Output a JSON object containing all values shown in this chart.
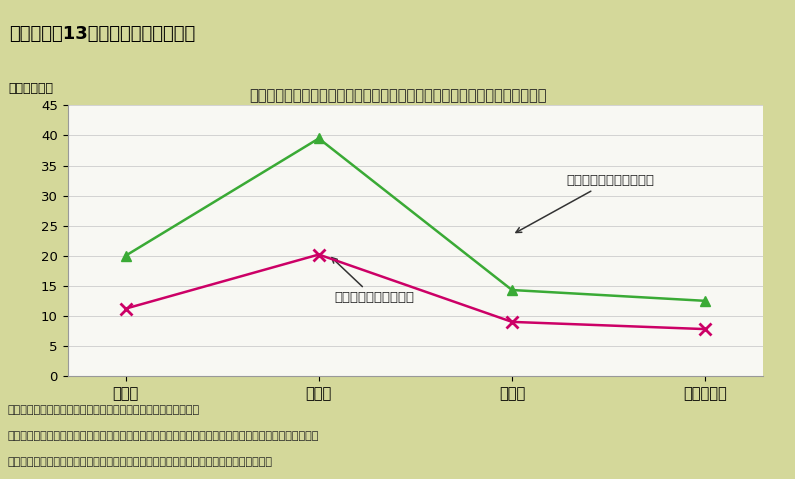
{
  "title": "第２－１－13図　復興需要への対応",
  "subtitle": "建設業を中心に復興需要の恩恵を受けているものの、設備投資には慎重姿勢",
  "ylabel": "（割合、％）",
  "categories": [
    "全産業",
    "建設業",
    "製造業",
    "サービス業"
  ],
  "series_labor": [
    20,
    39.5,
    14.3,
    12.5
  ],
  "series_equipment": [
    11.2,
    20.2,
    9.0,
    7.8
  ],
  "labor_color": "#3aaa35",
  "equipment_color": "#cc0066",
  "labor_label": "労働力を増加させた割合",
  "equipment_label": "設備を増加させた割合",
  "ylim": [
    0,
    45
  ],
  "yticks": [
    0,
    5,
    10,
    15,
    20,
    25,
    30,
    35,
    40,
    45
  ],
  "bg_outer": "#d4d89a",
  "bg_plot": "#f8f8f3",
  "title_bg": "#c8cc78",
  "note_line1": "（備考）１．内閣府「企業行動に関する意識調査」により作成。",
  "note_line2": "　　　　２．サービス業とは、農林水産業、建設業、製造業、金融業・保険業を除く全ての産業をいう。",
  "note_line3": "　　　　３．増加させたとは、「大幅に増加」、「増加」と回答した割合の合計をいう。"
}
